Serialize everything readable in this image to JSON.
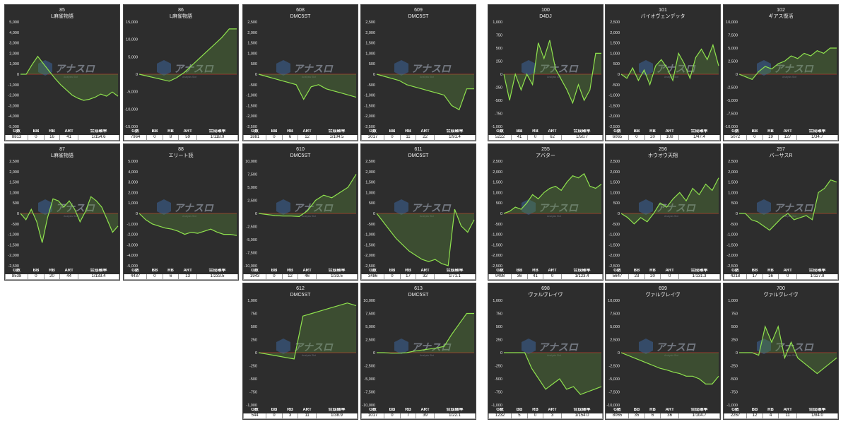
{
  "stat_headers": [
    "G数",
    "BB",
    "RB",
    "ART",
    "合成確率"
  ],
  "colors": {
    "panel_bg": "#2d2d2d",
    "line": "#8fe34e",
    "fill": "#5a8a3a",
    "zero_line": "#c0392b",
    "text": "#e6e6e6"
  },
  "watermark": {
    "brand": "アナスロ",
    "sub": "Analysis Slot",
    "icon": "analysis-slot-logo-icon"
  },
  "panels": [
    {
      "id": "85",
      "name": "L麻雀物語",
      "g": "8813",
      "bb": "0",
      "rb": "16",
      "art": "41",
      "prob": "1/154.6",
      "yticks": [
        "5,000",
        "4,000",
        "3,000",
        "2,000",
        "1,000",
        "0",
        "-1,000",
        "-2,000",
        "-3,000",
        "-4,000",
        "-5,000"
      ],
      "chart_data": {
        "type": "area",
        "ylim": [
          -5000,
          5000
        ],
        "y": [
          0,
          0,
          900,
          1700,
          1000,
          300,
          -400,
          -1000,
          -1500,
          -2000,
          -2300,
          -2500,
          -2400,
          -2200,
          -1900,
          -2100,
          -1700,
          -2100
        ]
      }
    },
    {
      "id": "86",
      "name": "L麻雀物語",
      "g": "7964",
      "bb": "0",
      "rb": "8",
      "art": "59",
      "prob": "1/118.9",
      "yticks": [
        "15,000",
        "10,000",
        "5,000",
        "0",
        "-5,000",
        "-10,000",
        "-15,000"
      ],
      "chart_data": {
        "type": "area",
        "ylim": [
          -15000,
          15000
        ],
        "y": [
          0,
          -500,
          -1000,
          -1500,
          -2000,
          -1000,
          500,
          2500,
          4500,
          6500,
          8500,
          10500,
          13000,
          13000
        ]
      }
    },
    {
      "id": "608",
      "name": "DMC5ST",
      "g": "1881",
      "bb": "0",
      "rb": "6",
      "art": "12",
      "prob": "1/104.5",
      "yticks": [
        "2,500",
        "2,000",
        "1,500",
        "1,000",
        "500",
        "0",
        "-500",
        "-1,000",
        "-1,500",
        "-2,000",
        "-2,500"
      ],
      "chart_data": {
        "type": "area",
        "ylim": [
          -2500,
          2500
        ],
        "y": [
          0,
          -100,
          -200,
          -300,
          -400,
          -500,
          -1200,
          -600,
          -500,
          -700,
          -800,
          -900,
          -1000,
          -1100
        ]
      }
    },
    {
      "id": "609",
      "name": "DMC5ST",
      "g": "3017",
      "bb": "0",
      "rb": "11",
      "art": "22",
      "prob": "1/91.4",
      "yticks": [
        "2,500",
        "2,000",
        "1,500",
        "1,000",
        "500",
        "0",
        "-500",
        "-1,000",
        "-1,500",
        "-2,000",
        "-2,500"
      ],
      "chart_data": {
        "type": "area",
        "ylim": [
          -2500,
          2500
        ],
        "y": [
          0,
          -100,
          -200,
          -300,
          -500,
          -600,
          -700,
          -800,
          -900,
          -1000,
          -1500,
          -1700,
          -700,
          -700
        ]
      }
    },
    {
      "id": "100",
      "name": "D4DJ",
      "g": "5222",
      "bb": "41",
      "rb": "0",
      "art": "62",
      "prob": "1/50.7",
      "yticks": [
        "1,000",
        "750",
        "500",
        "250",
        "0",
        "-250",
        "-500",
        "-750",
        "-1,000"
      ],
      "chart_data": {
        "type": "area",
        "ylim": [
          -1000,
          1000
        ],
        "y": [
          0,
          -500,
          0,
          -300,
          0,
          -200,
          600,
          300,
          650,
          100,
          -100,
          -300,
          -550,
          -200,
          -500,
          -300,
          400,
          400
        ]
      }
    },
    {
      "id": "101",
      "name": "バイオヴェンデッタ",
      "g": "6065",
      "bb": "0",
      "rb": "20",
      "art": "108",
      "prob": "1/47.4",
      "yticks": [
        "2,500",
        "2,000",
        "1,500",
        "1,000",
        "500",
        "0",
        "-500",
        "-1,000",
        "-1,500",
        "-2,000",
        "-2,500"
      ],
      "chart_data": {
        "type": "area",
        "ylim": [
          -2500,
          2500
        ],
        "y": [
          0,
          -200,
          300,
          -300,
          200,
          -500,
          400,
          700,
          300,
          -300,
          1000,
          500,
          -200,
          800,
          1200,
          700,
          1400,
          400
        ]
      }
    },
    {
      "id": "102",
      "name": "ギアス復活",
      "g": "5072",
      "bb": "0",
      "rb": "19",
      "art": "127",
      "prob": "1/34.7",
      "yticks": [
        "10,000",
        "7,500",
        "5,000",
        "2,500",
        "0",
        "-2,500",
        "-5,000",
        "-7,500",
        "-10,000"
      ],
      "chart_data": {
        "type": "area",
        "ylim": [
          -10000,
          10000
        ],
        "y": [
          0,
          -500,
          -1000,
          500,
          1500,
          1000,
          2000,
          2500,
          3500,
          3000,
          4000,
          3500,
          4500,
          4000,
          5000,
          5000
        ]
      }
    },
    {
      "id": "87",
      "name": "L麻雀物語",
      "g": "8538",
      "bb": "0",
      "rb": "20",
      "art": "44",
      "prob": "1/133.4",
      "yticks": [
        "2,500",
        "2,000",
        "1,500",
        "1,000",
        "500",
        "0",
        "-500",
        "-1,000",
        "-1,500",
        "-2,000",
        "-2,500"
      ],
      "chart_data": {
        "type": "area",
        "ylim": [
          -2500,
          2500
        ],
        "y": [
          0,
          -300,
          200,
          -400,
          -1400,
          -200,
          700,
          600,
          300,
          600,
          200,
          -400,
          100,
          800,
          600,
          300,
          -300,
          -900,
          -600
        ]
      }
    },
    {
      "id": "88",
      "name": "エリート読",
      "g": "4437",
      "bb": "0",
      "rb": "6",
      "art": "13",
      "prob": "1/233.5",
      "yticks": [
        "5,000",
        "4,000",
        "3,000",
        "2,000",
        "1,000",
        "0",
        "-1,000",
        "-2,000",
        "-3,000",
        "-4,000",
        "-5,000"
      ],
      "chart_data": {
        "type": "area",
        "ylim": [
          -5000,
          5000
        ],
        "y": [
          0,
          -600,
          -1000,
          -1200,
          -1400,
          -1500,
          -1700,
          -2000,
          -1800,
          -1900,
          -1700,
          -1500,
          -1800,
          -2000,
          -2000,
          -2100
        ]
      }
    },
    {
      "id": "610",
      "name": "DMC5ST",
      "g": "1943",
      "bb": "0",
      "rb": "12",
      "art": "46",
      "prob": "1/33.5",
      "yticks": [
        "10,000",
        "7,500",
        "5,000",
        "2,500",
        "0",
        "-2,500",
        "-5,000",
        "-7,500",
        "-10,000"
      ],
      "chart_data": {
        "type": "area",
        "ylim": [
          -10000,
          10000
        ],
        "y": [
          0,
          -200,
          -400,
          -500,
          -500,
          -600,
          500,
          2500,
          3500,
          3000,
          4000,
          5000,
          7500
        ]
      }
    },
    {
      "id": "611",
      "name": "DMC5ST",
      "g": "3486",
      "bb": "0",
      "rb": "17",
      "art": "32",
      "prob": "1/71.1",
      "yticks": [
        "2,500",
        "2,000",
        "1,500",
        "1,000",
        "500",
        "0",
        "-500",
        "-1,000",
        "-1,500",
        "-2,000",
        "-2,500"
      ],
      "chart_data": {
        "type": "area",
        "ylim": [
          -2500,
          2500
        ],
        "y": [
          0,
          -400,
          -800,
          -1200,
          -1500,
          -1800,
          -2000,
          -2200,
          -2300,
          -2200,
          -2400,
          -2500,
          200,
          -600,
          -900,
          -300
        ]
      }
    },
    {
      "id": "255",
      "name": "アバター",
      "g": "9498",
      "bb": "36",
      "rb": "41",
      "art": "0",
      "prob": "1/123.4",
      "yticks": [
        "2,500",
        "2,000",
        "1,500",
        "1,000",
        "500",
        "0",
        "-500",
        "-1,000",
        "-1,500",
        "-2,000",
        "-2,500"
      ],
      "chart_data": {
        "type": "area",
        "ylim": [
          -2500,
          2500
        ],
        "y": [
          0,
          100,
          300,
          200,
          500,
          900,
          700,
          1000,
          1200,
          1300,
          1100,
          1500,
          1800,
          1700,
          1900,
          1300,
          1200,
          1400
        ]
      }
    },
    {
      "id": "256",
      "name": "ホウオウ天翔",
      "g": "5647",
      "bb": "23",
      "rb": "20",
      "art": "0",
      "prob": "1/131.3",
      "yticks": [
        "2,500",
        "2,000",
        "1,500",
        "1,000",
        "500",
        "0",
        "-500",
        "-1,000",
        "-1,500",
        "-2,000",
        "-2,500"
      ],
      "chart_data": {
        "type": "area",
        "ylim": [
          -2500,
          2500
        ],
        "y": [
          0,
          -200,
          -500,
          -200,
          -400,
          0,
          500,
          300,
          700,
          1000,
          600,
          1200,
          900,
          1400,
          1100,
          1700
        ]
      }
    },
    {
      "id": "257",
      "name": "バーサスR",
      "g": "4218",
      "bb": "17",
      "rb": "16",
      "art": "0",
      "prob": "1/127.8",
      "yticks": [
        "2,500",
        "2,000",
        "1,500",
        "1,000",
        "500",
        "0",
        "-500",
        "-1,000",
        "-1,500",
        "-2,000",
        "-2,500"
      ],
      "chart_data": {
        "type": "area",
        "ylim": [
          -2500,
          2500
        ],
        "y": [
          0,
          0,
          -300,
          -400,
          -600,
          -800,
          -500,
          -200,
          0,
          -300,
          -200,
          -100,
          -300,
          1000,
          1200,
          1600,
          1500
        ]
      }
    },
    {
      "id": "612",
      "name": "DMC5ST",
      "g": "544",
      "bb": "0",
      "rb": "3",
      "art": "11",
      "prob": "1/38.9",
      "yticks": [
        "1,000",
        "750",
        "500",
        "250",
        "0",
        "-250",
        "-500",
        "-750",
        "-1,000"
      ],
      "chart_data": {
        "type": "area",
        "ylim": [
          -1000,
          1000
        ],
        "y": [
          0,
          -30,
          -60,
          -90,
          -120,
          700,
          750,
          800,
          850,
          900,
          950,
          900
        ]
      }
    },
    {
      "id": "613",
      "name": "DMC5ST",
      "g": "1017",
      "bb": "0",
      "rb": "7",
      "art": "39",
      "prob": "1/22.1",
      "yticks": [
        "10,000",
        "7,500",
        "5,000",
        "2,500",
        "0",
        "-2,500",
        "-5,000",
        "-7,500",
        "-10,000"
      ],
      "chart_data": {
        "type": "area",
        "ylim": [
          -10000,
          10000
        ],
        "y": [
          0,
          0,
          -100,
          -100,
          0,
          300,
          500,
          700,
          900,
          1200,
          3500,
          5500,
          7500,
          7500
        ]
      }
    },
    {
      "id": "698",
      "name": "ヴァルヴレイヴ",
      "g": "1232",
      "bb": "5",
      "rb": "0",
      "art": "3",
      "prob": "1/154.0",
      "yticks": [
        "1,000",
        "750",
        "500",
        "250",
        "0",
        "-250",
        "-500",
        "-750",
        "-1,000"
      ],
      "chart_data": {
        "type": "area",
        "ylim": [
          -1000,
          1000
        ],
        "y": [
          0,
          0,
          0,
          0,
          -300,
          -500,
          -700,
          -600,
          -500,
          -700,
          -650,
          -800,
          -750,
          -700,
          -650
        ]
      }
    },
    {
      "id": "699",
      "name": "ヴァルヴレイヴ",
      "g": "8065",
      "bb": "35",
      "rb": "6",
      "art": "36",
      "prob": "1/104.7",
      "yticks": [
        "10,000",
        "7,500",
        "5,000",
        "2,500",
        "0",
        "-2,500",
        "-5,000",
        "-7,500",
        "-10,000"
      ],
      "chart_data": {
        "type": "area",
        "ylim": [
          -10000,
          10000
        ],
        "y": [
          0,
          -500,
          -1000,
          -1500,
          -2000,
          -2500,
          -3000,
          -3300,
          -3700,
          -4000,
          -4500,
          -4500,
          -5000,
          -6000,
          -6000,
          -4500
        ]
      }
    },
    {
      "id": "700",
      "name": "ヴァルヴレイヴ",
      "g": "2267",
      "bb": "12",
      "rb": "4",
      "art": "11",
      "prob": "1/84.0",
      "yticks": [
        "1,000",
        "750",
        "500",
        "250",
        "0",
        "-250",
        "-500",
        "-750",
        "-1,000"
      ],
      "chart_data": {
        "type": "area",
        "ylim": [
          -1000,
          1000
        ],
        "y": [
          0,
          0,
          0,
          -50,
          500,
          200,
          500,
          -100,
          200,
          -100,
          -200,
          -300,
          -400,
          -300,
          -200,
          -100
        ]
      }
    }
  ]
}
